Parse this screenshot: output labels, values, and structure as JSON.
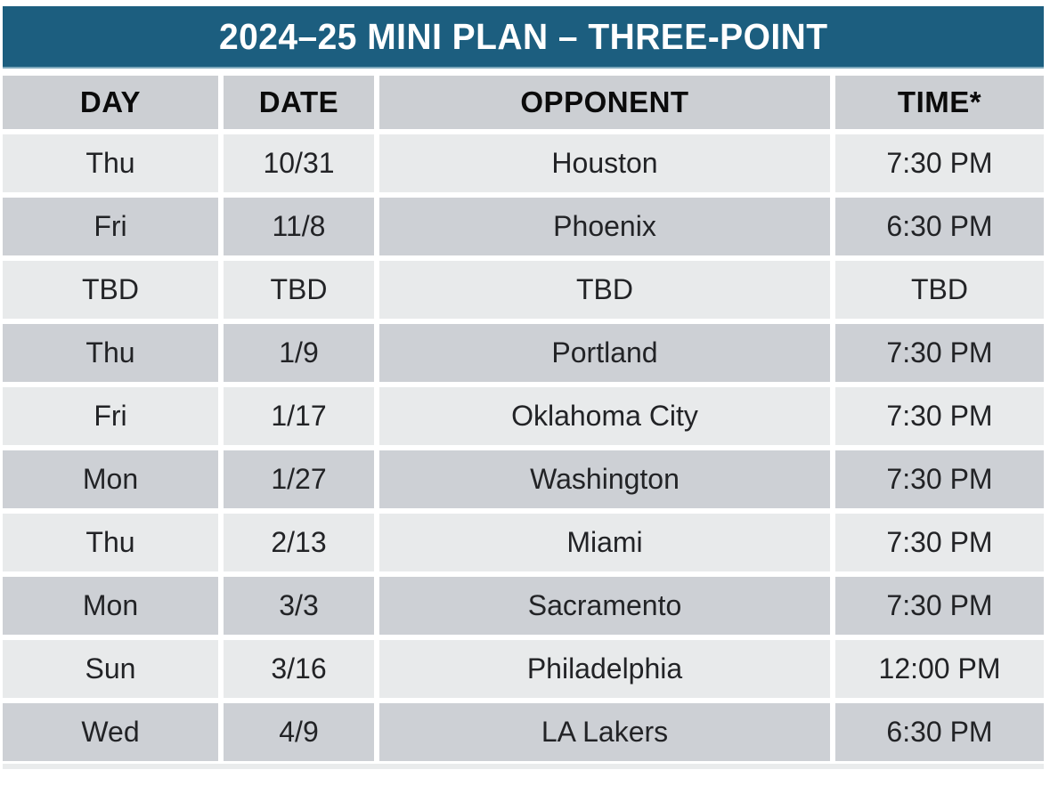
{
  "title": "2024–25 MINI PLAN – THREE-POINT",
  "colors": {
    "title_bar_background": "#1C5E7F",
    "title_text": "#FFFFFF",
    "header_row_background": "#CCCFD3",
    "row_light_background": "#E8EAEB",
    "row_dark_background": "#CDD0D5",
    "data_text": "#222326"
  },
  "chart_data": {
    "type": "table",
    "title": "2024–25 MINI PLAN – THREE-POINT",
    "columns": [
      "DAY",
      "DATE",
      "OPPONENT",
      "TIME*"
    ],
    "rows": [
      [
        "Thu",
        "10/31",
        "Houston",
        "7:30 PM"
      ],
      [
        "Fri",
        "11/8",
        "Phoenix",
        "6:30 PM"
      ],
      [
        "TBD",
        "TBD",
        "TBD",
        "TBD"
      ],
      [
        "Thu",
        "1/9",
        "Portland",
        "7:30 PM"
      ],
      [
        "Fri",
        "1/17",
        "Oklahoma City",
        "7:30 PM"
      ],
      [
        "Mon",
        "1/27",
        "Washington",
        "7:30 PM"
      ],
      [
        "Thu",
        "2/13",
        "Miami",
        "7:30 PM"
      ],
      [
        "Mon",
        "3/3",
        "Sacramento",
        "7:30 PM"
      ],
      [
        "Sun",
        "3/16",
        "Philadelphia",
        "12:00 PM"
      ],
      [
        "Wed",
        "4/9",
        "LA Lakers",
        "6:30 PM"
      ]
    ],
    "layout": {
      "row_striping": "alternating light/dark starting light",
      "alignment": "all cells centered",
      "grid": "white gaps between cells"
    }
  }
}
